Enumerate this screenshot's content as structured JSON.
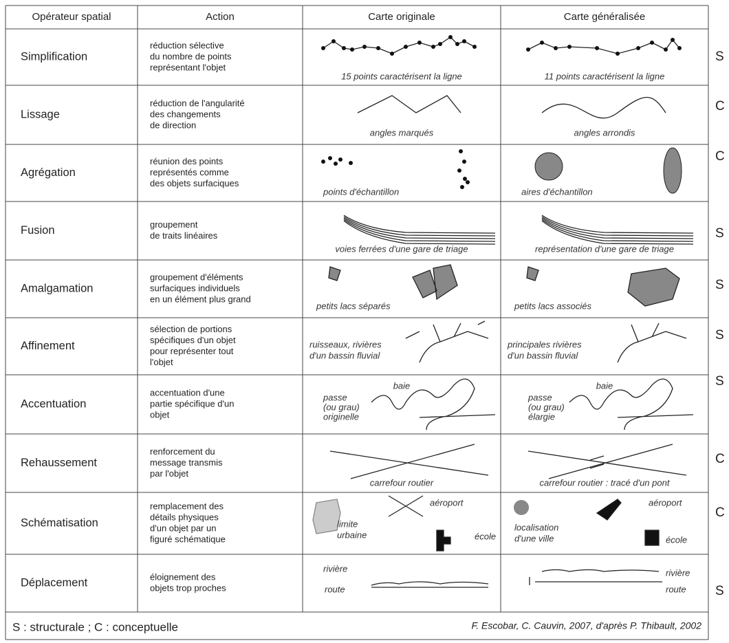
{
  "table": {
    "header": [
      "Opérateur spatial",
      "Action",
      "Carte originale",
      "Carte généralisée"
    ],
    "rows": [
      {
        "operator": "Simplification",
        "action": [
          "réduction sélective",
          "du nombre de points",
          "représentant l'objet"
        ],
        "original": [
          "15 points caractérisent la ligne"
        ],
        "generalized": [
          "11 points caractérisent la ligne"
        ],
        "type": "S"
      },
      {
        "operator": "Lissage",
        "action": [
          "réduction de l'angularité",
          "des changements",
          "de direction"
        ],
        "original": [
          "angles marqués"
        ],
        "generalized": [
          "angles arrondis"
        ],
        "type": "C"
      },
      {
        "operator": "Agrégation",
        "action": [
          "réunion des points",
          "représentés comme",
          "des objets surfaciques"
        ],
        "original": [
          "points d'échantillon"
        ],
        "generalized": [
          "aires d'échantillon"
        ],
        "type": "C"
      },
      {
        "operator": "Fusion",
        "action": [
          "groupement",
          "de traits linéaires"
        ],
        "original": [
          "voies ferrées d'une gare de triage"
        ],
        "generalized": [
          "représentation d'une gare de triage"
        ],
        "type": "S"
      },
      {
        "operator": "Amalgamation",
        "action": [
          "groupement d'éléments",
          "surfaciques individuels",
          "en un élément plus grand"
        ],
        "original": [
          "petits lacs séparés"
        ],
        "generalized": [
          "petits lacs associés"
        ],
        "type": "S"
      },
      {
        "operator": "Affinement",
        "action": [
          "sélection de portions",
          "spécifiques d'un objet",
          "pour représenter tout",
          "l'objet"
        ],
        "original": [
          "ruisseaux, rivières",
          "d'un bassin fluvial"
        ],
        "generalized": [
          "principales rivières",
          "d'un bassin fluvial"
        ],
        "type": "S"
      },
      {
        "operator": "Accentuation",
        "action": [
          "accentuation d'une",
          "partie spécifique d'un",
          "objet"
        ],
        "original": [
          "passe",
          "(ou grau)",
          "originelle",
          "baie"
        ],
        "generalized": [
          "passe",
          "(ou grau)",
          "élargie",
          "baie"
        ],
        "type": "S"
      },
      {
        "operator": "Rehaussement",
        "action": [
          "renforcement du",
          "message transmis",
          "par l'objet"
        ],
        "original": [
          "carrefour routier"
        ],
        "generalized": [
          "carrefour routier : tracé d'un pont"
        ],
        "type": "C"
      },
      {
        "operator": "Schématisation",
        "action": [
          "remplacement des",
          "détails physiques",
          "d'un objet par un",
          "figuré schématique"
        ],
        "original": [
          "aéroport",
          "limite",
          "urbaine",
          "école"
        ],
        "generalized": [
          "aéroport",
          "localisation",
          "d'une ville",
          "école"
        ],
        "type": "C"
      },
      {
        "operator": "Déplacement",
        "action": [
          "éloignement des",
          "objets trop proches"
        ],
        "original": [
          "rivière",
          "route"
        ],
        "generalized": [
          "rivière",
          "route"
        ],
        "type": "S"
      }
    ]
  },
  "footer": {
    "legend": "S : structurale ; C : conceptuelle",
    "source": "F. Escobar, C. Cauvin, 2007, d'après P. Thibault, 2002"
  }
}
